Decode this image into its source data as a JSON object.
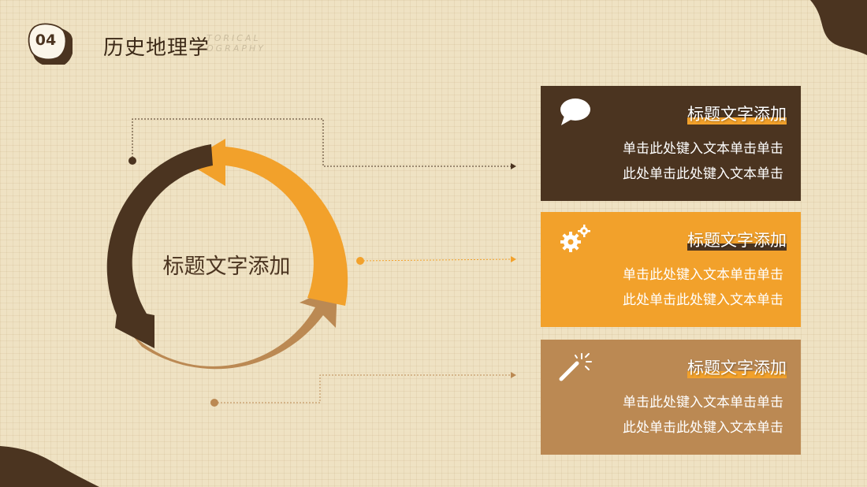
{
  "header": {
    "badge_number": "04",
    "title": "历史地理学",
    "ghost_line1": "TORICAL",
    "ghost_line2": "OGRAPHY"
  },
  "center": {
    "title": "标题文字添加"
  },
  "cards": [
    {
      "icon": "speech-bubble-icon",
      "title": "标题文字添加",
      "line1": "单击此处键入文本单击单击",
      "line2": "此处单击此处键入文本单击"
    },
    {
      "icon": "gears-icon",
      "title": "标题文字添加",
      "line1": "单击此处键入文本单击单击",
      "line2": "此处单击此处键入文本单击"
    },
    {
      "icon": "magic-wand-icon",
      "title": "标题文字添加",
      "line1": "单击此处键入文本单击单击",
      "line2": "此处单击此处键入文本单击"
    }
  ],
  "colors": {
    "dark_brown": "#4b3420",
    "orange": "#f2a12b",
    "tan": "#bb8953",
    "background": "#efe2c3"
  }
}
